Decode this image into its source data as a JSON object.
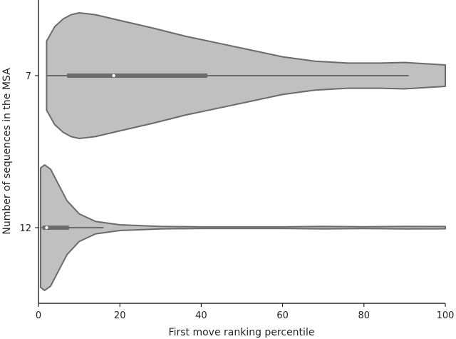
{
  "chart_data": {
    "type": "violin",
    "orientation": "horizontal",
    "xlabel": "First move ranking percentile",
    "ylabel": "Number of sequences in the MSA",
    "xlim": [
      0,
      100
    ],
    "x_ticks": [
      "0",
      "20",
      "40",
      "60",
      "80",
      "100"
    ],
    "categories": [
      "7",
      "12"
    ],
    "fill_color": "#c0c0c0",
    "edge_color": "#6b6b6b",
    "series": [
      {
        "category": "7",
        "density": [
          [
            2,
            0.55
          ],
          [
            4,
            0.78
          ],
          [
            6,
            0.9
          ],
          [
            8,
            0.97
          ],
          [
            10,
            1.0
          ],
          [
            14,
            0.97
          ],
          [
            20,
            0.88
          ],
          [
            28,
            0.76
          ],
          [
            36,
            0.63
          ],
          [
            44,
            0.52
          ],
          [
            52,
            0.41
          ],
          [
            60,
            0.3
          ],
          [
            68,
            0.23
          ],
          [
            76,
            0.2
          ],
          [
            84,
            0.2
          ],
          [
            90,
            0.21
          ],
          [
            95,
            0.19
          ],
          [
            100,
            0.17
          ]
        ],
        "box": {
          "q1": 7,
          "median": 18.5,
          "q3": 41.5,
          "whisker_low": 2,
          "whisker_high": 91
        }
      },
      {
        "category": "12",
        "density": [
          [
            0.5,
            0.95
          ],
          [
            1.5,
            1.0
          ],
          [
            3,
            0.93
          ],
          [
            5,
            0.68
          ],
          [
            7,
            0.43
          ],
          [
            10,
            0.22
          ],
          [
            14,
            0.1
          ],
          [
            20,
            0.045
          ],
          [
            30,
            0.02
          ],
          [
            40,
            0.012
          ],
          [
            60,
            0.012
          ],
          [
            70,
            0.02
          ],
          [
            80,
            0.014
          ],
          [
            90,
            0.02
          ],
          [
            100,
            0.018
          ]
        ],
        "box": {
          "q1": 1,
          "median": 2,
          "q3": 7.5,
          "whisker_low": 0.5,
          "whisker_high": 16
        }
      }
    ]
  }
}
